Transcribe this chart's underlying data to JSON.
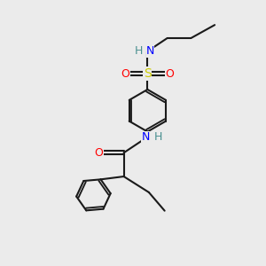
{
  "background_color": "#ebebeb",
  "bond_color": "#1a1a1a",
  "figsize": [
    3.0,
    3.0
  ],
  "dpi": 100,
  "atoms": {
    "S": {
      "color": "#cccc00"
    },
    "O": {
      "color": "#ff0000"
    },
    "N": {
      "color": "#0000ff"
    },
    "H": {
      "color": "#4a9090"
    },
    "C": {
      "color": "#1a1a1a"
    }
  },
  "line_color": "#1a1a1a",
  "line_width": 1.5
}
